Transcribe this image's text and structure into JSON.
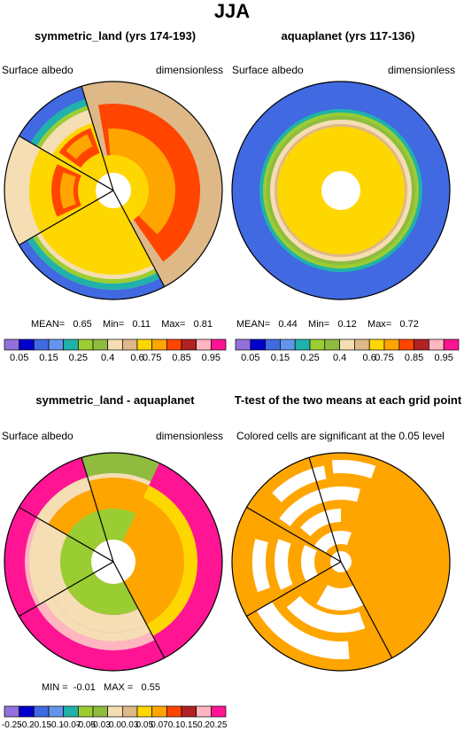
{
  "page_title": "JJA",
  "chart_data": [
    {
      "type": "heatmap",
      "projection": "polar",
      "title": "symmetric_land (yrs 174-193)",
      "left_label": "Surface albedo",
      "right_label": "dimensionless",
      "stats": {
        "mean_label": "MEAN=",
        "mean": "0.65",
        "min_label": "Min=",
        "min": "0.11",
        "max_label": "Max=",
        "max": "0.81"
      },
      "colorbar": {
        "colors": [
          "#9370db",
          "#0000cd",
          "#4169e1",
          "#6495ed",
          "#20b2aa",
          "#9acd32",
          "#8fbc3f",
          "#f5deb3",
          "#deb887",
          "#ffd700",
          "#ffa500",
          "#ff4500",
          "#b22222",
          "#ffb6c1",
          "#ff1493"
        ],
        "labels": [
          "0.05",
          "0.15",
          "0.25",
          "0.4",
          "0.6",
          "0.75",
          "0.85",
          "0.95"
        ]
      }
    },
    {
      "type": "heatmap",
      "projection": "polar",
      "title": "aquaplanet (yrs 117-136)",
      "left_label": "Surface albedo",
      "right_label": "dimensionless",
      "stats": {
        "mean_label": "MEAN=",
        "mean": "0.44",
        "min_label": "Min=",
        "min": "0.12",
        "max_label": "Max=",
        "max": "0.72"
      },
      "colorbar": {
        "colors": [
          "#9370db",
          "#0000cd",
          "#4169e1",
          "#6495ed",
          "#20b2aa",
          "#9acd32",
          "#8fbc3f",
          "#f5deb3",
          "#deb887",
          "#ffd700",
          "#ffa500",
          "#ff4500",
          "#b22222",
          "#ffb6c1",
          "#ff1493"
        ],
        "labels": [
          "0.05",
          "0.15",
          "0.25",
          "0.4",
          "0.6",
          "0.75",
          "0.85",
          "0.95"
        ]
      }
    },
    {
      "type": "heatmap",
      "projection": "polar",
      "title": "symmetric_land - aquaplanet",
      "left_label": "Surface albedo",
      "right_label": "dimensionless",
      "stats": {
        "min_label": "MIN =",
        "min": "-0.01",
        "max_label": "MAX =",
        "max": "0.55"
      },
      "colorbar": {
        "colors": [
          "#9370db",
          "#0000cd",
          "#4169e1",
          "#6495ed",
          "#20b2aa",
          "#9acd32",
          "#8fbc3f",
          "#f5deb3",
          "#deb887",
          "#ffd700",
          "#ffa500",
          "#ff4500",
          "#b22222",
          "#ffb6c1",
          "#ff1493"
        ],
        "labels": [
          "-0.25",
          "-0.2",
          "-0.15",
          "-0.1",
          "-0.07",
          "-0.05",
          "-0.03",
          "0.0",
          "0.03",
          "0.05",
          "0.07",
          "0.1",
          "0.15",
          "0.2",
          "0.25"
        ]
      }
    },
    {
      "type": "heatmap",
      "projection": "polar",
      "title": "T-test of the two means at each grid point",
      "subtitle": "Colored cells are significant at the 0.05 level",
      "colors": {
        "significant": "#ffa500",
        "not_significant": "#ffffff"
      }
    }
  ]
}
